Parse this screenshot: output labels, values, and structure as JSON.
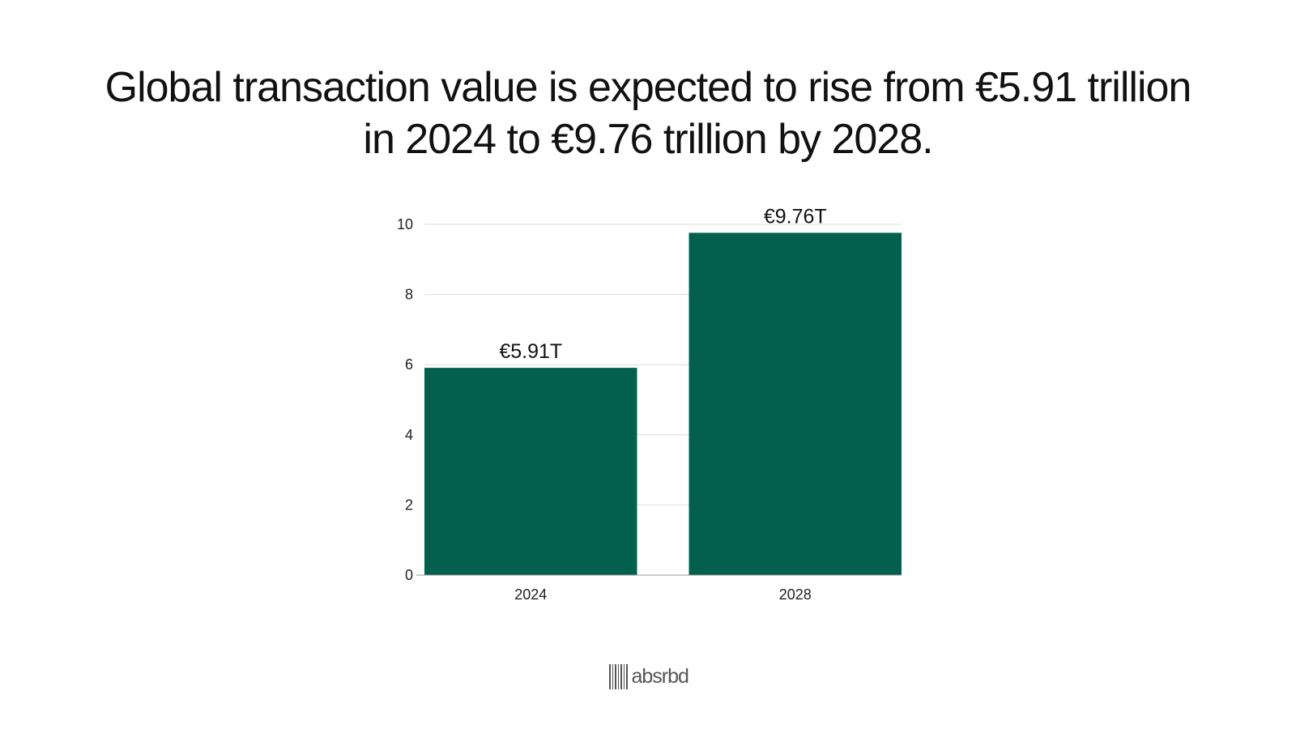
{
  "headline": "Global transaction value is expected to rise from €5.91 trillion in 2024 to €9.76 trillion by 2028.",
  "chart_data": {
    "type": "bar",
    "title": "",
    "xlabel": "",
    "ylabel": "",
    "categories": [
      "2024",
      "2028"
    ],
    "values": [
      5.91,
      9.76
    ],
    "data_labels": [
      "€5.91T",
      "€9.76T"
    ],
    "ylim": [
      0,
      10
    ],
    "yticks": [
      0,
      2,
      4,
      6,
      8,
      10
    ],
    "grid": true,
    "legend": "none",
    "bar_color": "#03604f",
    "grid_color": "#dddddd"
  },
  "brand": {
    "name": "absrbd",
    "color": "#555555"
  }
}
